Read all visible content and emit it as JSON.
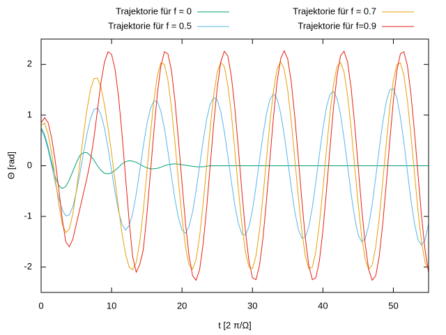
{
  "chart_data": {
    "type": "line",
    "x_label": "t [2 π/Ω]",
    "y_label": "Θ [rad]",
    "x": [
      0,
      0.5,
      1,
      1.5,
      2,
      2.5,
      3,
      3.5,
      4,
      4.5,
      5,
      5.5,
      6,
      6.5,
      7,
      7.5,
      8,
      8.5,
      9,
      9.5,
      10,
      10.5,
      11,
      11.5,
      12,
      12.5,
      13,
      13.5,
      14,
      14.5,
      15,
      15.5,
      16,
      16.5,
      17,
      17.5,
      18,
      18.5,
      19,
      19.5,
      20,
      20.5,
      21,
      21.5,
      22,
      22.5,
      23,
      23.5,
      24,
      24.5,
      25,
      25.5,
      26,
      26.5,
      27,
      27.5,
      28,
      28.5,
      29,
      29.5,
      30,
      30.5,
      31,
      31.5,
      32,
      32.5,
      33,
      33.5,
      34,
      34.5,
      35,
      35.5,
      36,
      36.5,
      37,
      37.5,
      38,
      38.5,
      39,
      39.5,
      40,
      40.5,
      41,
      41.5,
      42,
      42.5,
      43,
      43.5,
      44,
      44.5,
      45,
      45.5,
      46,
      46.5,
      47,
      47.5,
      48,
      48.5,
      49,
      49.5,
      50,
      50.5,
      51,
      51.5,
      52,
      52.5,
      53,
      53.5,
      54,
      54.5,
      55
    ],
    "series": [
      {
        "name": "Trajektorie für f = 0",
        "color": "#009e73",
        "values": [
          0.75,
          0.61,
          0.36,
          0.06,
          -0.21,
          -0.39,
          -0.45,
          -0.41,
          -0.28,
          -0.11,
          0.06,
          0.2,
          0.26,
          0.26,
          0.2,
          0.11,
          0,
          -0.09,
          -0.15,
          -0.16,
          -0.14,
          -0.09,
          -0.03,
          0.04,
          0.08,
          0.1,
          0.09,
          0.07,
          0.03,
          -0.01,
          -0.04,
          -0.06,
          -0.06,
          -0.05,
          -0.03,
          0,
          0.02,
          0.03,
          0.04,
          0.03,
          0.02,
          0.01,
          0,
          -0.01,
          -0.02,
          -0.02,
          -0.02,
          -0.01,
          0,
          0,
          0,
          0,
          0,
          0,
          0,
          0,
          0,
          0,
          0,
          0,
          0,
          0,
          0,
          0,
          0,
          0,
          0,
          0,
          0,
          0,
          0,
          0,
          0,
          0,
          0,
          0,
          0,
          0,
          0,
          0,
          0,
          0,
          0,
          0,
          0,
          0,
          0,
          0,
          0,
          0,
          0,
          0,
          0,
          0,
          0,
          0,
          0,
          0,
          0,
          0,
          0,
          0,
          0,
          0,
          0,
          0,
          0,
          0,
          0,
          0,
          0
        ]
      },
      {
        "name": "Trajektorie für f = 0.5",
        "color": "#56b4e9",
        "values": [
          0.72,
          0.56,
          0.31,
          0,
          -0.33,
          -0.64,
          -0.87,
          -0.99,
          -0.97,
          -0.81,
          -0.52,
          -0.16,
          0.24,
          0.62,
          0.93,
          1.11,
          1.14,
          1.01,
          0.74,
          0.35,
          -0.09,
          -0.53,
          -0.9,
          -1.16,
          -1.27,
          -1.18,
          -0.94,
          -0.56,
          -0.1,
          0.38,
          0.81,
          1.12,
          1.28,
          1.27,
          1.08,
          0.74,
          0.29,
          -0.2,
          -0.66,
          -1.03,
          -1.27,
          -1.33,
          -1.2,
          -0.91,
          -0.49,
          0,
          0.49,
          0.92,
          1.22,
          1.35,
          1.3,
          1.07,
          0.68,
          0.2,
          -0.31,
          -0.78,
          -1.14,
          -1.35,
          -1.37,
          -1.21,
          -0.87,
          -0.41,
          0.11,
          0.61,
          1.03,
          1.32,
          1.42,
          1.32,
          1.04,
          0.62,
          0.11,
          -0.42,
          -0.9,
          -1.25,
          -1.43,
          -1.41,
          -1.2,
          -0.82,
          -0.32,
          0.22,
          0.73,
          1.15,
          1.41,
          1.47,
          1.33,
          1.01,
          0.54,
          0,
          -0.55,
          -1.02,
          -1.36,
          -1.5,
          -1.44,
          -1.18,
          -0.76,
          -0.23,
          0.34,
          0.86,
          1.27,
          1.5,
          1.52,
          1.34,
          0.96,
          0.46,
          -0.12,
          -0.68,
          -1.14,
          -1.46,
          -1.57,
          -1.46,
          -1.15
        ]
      },
      {
        "name": "Trajektorie für f = 0.7",
        "color": "#e69f00",
        "values": [
          0.8,
          0.84,
          0.62,
          0.25,
          -0.25,
          -0.75,
          -1.15,
          -1.32,
          -1.25,
          -0.95,
          -0.5,
          0.05,
          0.6,
          1.1,
          1.5,
          1.72,
          1.73,
          1.55,
          1.2,
          0.75,
          0.25,
          -0.3,
          -0.85,
          -1.35,
          -1.75,
          -2.0,
          -2.05,
          -1.91,
          -1.5,
          -0.89,
          -0.15,
          0.6,
          1.28,
          1.78,
          2.03,
          2.0,
          1.69,
          1.15,
          0.46,
          -0.31,
          -1.03,
          -1.6,
          -1.96,
          -2.04,
          -1.85,
          -1.39,
          -0.75,
          0,
          0.75,
          1.39,
          1.85,
          2.04,
          1.96,
          1.6,
          1.03,
          0.3,
          -0.46,
          -1.16,
          -1.7,
          -2.0,
          -2.03,
          -1.78,
          -1.28,
          -0.6,
          0.15,
          0.89,
          1.5,
          1.91,
          2.05,
          1.91,
          1.5,
          0.89,
          0.15,
          -0.6,
          -1.28,
          -1.78,
          -2.03,
          -2.0,
          -1.69,
          -1.15,
          -0.46,
          0.31,
          1.03,
          1.6,
          1.96,
          2.04,
          1.85,
          1.39,
          0.75,
          0,
          -0.75,
          -1.39,
          -1.85,
          -2.04,
          -1.96,
          -1.6,
          -1.03,
          -0.31,
          0.45,
          1.16,
          1.69,
          2.0,
          2.03,
          1.78,
          1.28,
          0.6,
          -0.15,
          -0.89,
          -1.5,
          -1.91,
          -2.05
        ]
      },
      {
        "name": "Trajektorie für f=0.9",
        "color": "#e51e10",
        "values": [
          0.85,
          0.95,
          0.85,
          0.55,
          0.1,
          -0.45,
          -1.05,
          -1.5,
          -1.6,
          -1.45,
          -1.15,
          -0.85,
          -0.55,
          -0.25,
          0.1,
          0.55,
          1.1,
          1.65,
          2.05,
          2.25,
          2.2,
          1.9,
          1.35,
          0.6,
          -0.25,
          -1.1,
          -1.8,
          -2.1,
          -1.95,
          -1.66,
          -0.99,
          -0.17,
          0.67,
          1.42,
          1.97,
          2.25,
          2.21,
          1.88,
          1.28,
          0.5,
          -0.34,
          -1.14,
          -1.78,
          -2.17,
          -2.26,
          -2.05,
          -1.54,
          -0.83,
          0,
          0.83,
          1.54,
          2.05,
          2.26,
          2.17,
          1.77,
          1.14,
          0.34,
          -0.51,
          -1.28,
          -1.88,
          -2.21,
          -2.25,
          -1.97,
          -1.42,
          -0.67,
          0.17,
          0.99,
          1.66,
          2.11,
          2.27,
          2.11,
          1.66,
          0.98,
          0.17,
          -0.67,
          -1.42,
          -1.97,
          -2.25,
          -2.21,
          -1.88,
          -1.28,
          -0.5,
          0.34,
          1.14,
          1.78,
          2.17,
          2.26,
          2.05,
          1.54,
          0.83,
          0,
          -0.83,
          -1.54,
          -2.05,
          -2.26,
          -2.17,
          -1.78,
          -1.14,
          -0.34,
          0.5,
          1.28,
          1.88,
          2.21,
          2.25,
          1.97,
          1.41,
          0.67,
          -0.17,
          -0.99,
          -1.66,
          -2.11
        ]
      }
    ],
    "xlim": [
      0,
      55
    ],
    "xticks": [
      0,
      10,
      20,
      30,
      40,
      50
    ],
    "ylim": [
      -2.5,
      2.5
    ],
    "yticks": [
      -2,
      -1,
      0,
      1,
      2
    ],
    "legend": "top"
  }
}
